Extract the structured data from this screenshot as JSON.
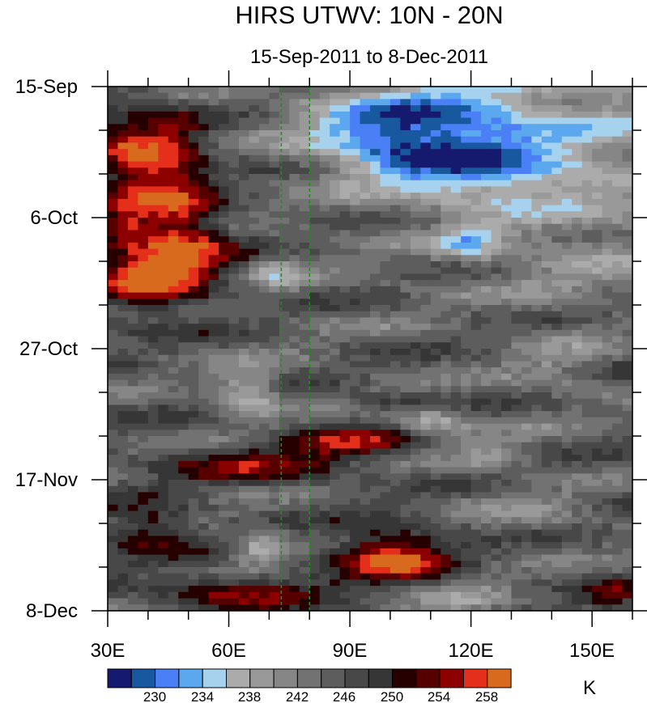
{
  "chart_data": {
    "type": "heatmap",
    "title": "HIRS UTWV: 10N - 20N",
    "subtitle": "15-Sep-2011 to 8-Dec-2011",
    "x_axis": {
      "range": [
        30,
        160
      ],
      "ticks": [
        30,
        60,
        90,
        120,
        150
      ],
      "tick_labels": [
        "30E",
        "60E",
        "90E",
        "120E",
        "150E"
      ],
      "minor_step": 10
    },
    "y_axis": {
      "range_days": [
        0,
        84
      ],
      "ticks": [
        0,
        21,
        42,
        63,
        84
      ],
      "tick_labels": [
        "15-Sep",
        "6-Oct",
        "27-Oct",
        "17-Nov",
        "8-Dec"
      ],
      "minor_step": 7,
      "direction": "top-to-bottom"
    },
    "reference_lines_lon": [
      73,
      80
    ],
    "colorbar": {
      "units": "K",
      "levels": [
        228,
        230,
        232,
        234,
        236,
        238,
        240,
        242,
        244,
        246,
        248,
        250,
        252,
        254,
        256,
        258,
        260
      ],
      "tick_labels": [
        "230",
        "234",
        "238",
        "242",
        "246",
        "250",
        "254",
        "258"
      ],
      "colors": [
        "#161a6e",
        "#17589e",
        "#4a7ff5",
        "#5ba8ee",
        "#a6d2ee",
        "#ababab",
        "#999999",
        "#868686",
        "#727272",
        "#5d5d5d",
        "#484848",
        "#363636",
        "#260000",
        "#560000",
        "#8c0000",
        "#e4301a",
        "#d86a1e"
      ]
    },
    "features": [
      {
        "lon": 44,
        "day": 12,
        "lon_r": 10,
        "day_r": 7,
        "amp": 12
      },
      {
        "lon": 48,
        "day": 26,
        "lon_r": 12,
        "day_r": 8,
        "amp": 13
      },
      {
        "lon": 40,
        "day": 31,
        "lon_r": 9,
        "day_r": 5,
        "amp": 9
      },
      {
        "lon": 34,
        "day": 17,
        "lon_r": 6,
        "day_r": 14,
        "amp": 6
      },
      {
        "lon": 90,
        "day": 57,
        "lon_r": 18,
        "day_r": 2.5,
        "amp": 9
      },
      {
        "lon": 65,
        "day": 61,
        "lon_r": 25,
        "day_r": 3,
        "amp": 7
      },
      {
        "lon": 40,
        "day": 71,
        "lon_r": 12,
        "day_r": 4,
        "amp": 8
      },
      {
        "lon": 100,
        "day": 75,
        "lon_r": 14,
        "day_r": 4,
        "amp": 14
      },
      {
        "lon": 62,
        "day": 81,
        "lon_r": 22,
        "day_r": 3,
        "amp": 8
      },
      {
        "lon": 100,
        "day": 51,
        "lon_r": 10,
        "day_r": 1.5,
        "amp": 5
      },
      {
        "lon": 155,
        "day": 82,
        "lon_r": 8,
        "day_r": 3,
        "amp": 6
      },
      {
        "lon": 110,
        "day": 5,
        "lon_r": 30,
        "day_r": 6,
        "amp": -11
      },
      {
        "lon": 125,
        "day": 14,
        "lon_r": 25,
        "day_r": 6,
        "amp": -10
      },
      {
        "lon": 100,
        "day": 10,
        "lon_r": 18,
        "day_r": 5,
        "amp": -8
      },
      {
        "lon": 120,
        "day": 25,
        "lon_r": 8,
        "day_r": 3,
        "amp": -8
      },
      {
        "lon": 72,
        "day": 30,
        "lon_r": 6,
        "day_r": 3,
        "amp": -6
      },
      {
        "lon": 65,
        "day": 49,
        "lon_r": 8,
        "day_r": 4,
        "amp": -9
      },
      {
        "lon": 110,
        "day": 54,
        "lon_r": 10,
        "day_r": 2.5,
        "amp": -8
      },
      {
        "lon": 68,
        "day": 74,
        "lon_r": 6,
        "day_r": 2.5,
        "amp": -9
      },
      {
        "lon": 125,
        "day": 59,
        "lon_r": 10,
        "day_r": 3,
        "amp": -5
      },
      {
        "lon": 140,
        "day": 45,
        "lon_r": 12,
        "day_r": 5,
        "amp": -4
      },
      {
        "lon": 118,
        "day": 83,
        "lon_r": 12,
        "day_r": 3,
        "amp": -5
      },
      {
        "lon": 145,
        "day": 28,
        "lon_r": 18,
        "day_r": 6,
        "amp": -3
      },
      {
        "lon": 135,
        "day": 68,
        "lon_r": 14,
        "day_r": 4,
        "amp": -3
      }
    ]
  }
}
